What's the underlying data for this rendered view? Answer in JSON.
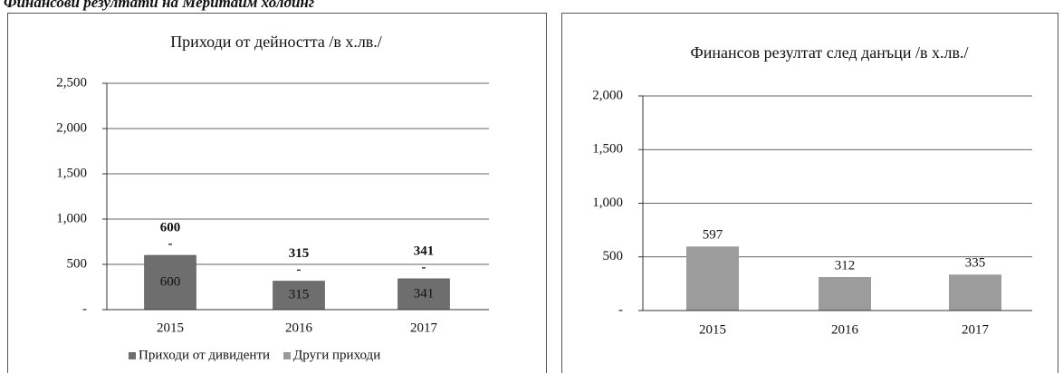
{
  "page_title": "Финансови резултати на Меритайм холдинг",
  "chart_data": [
    {
      "type": "stacked_bar",
      "title": "Приходи от дейността /в х.лв./",
      "categories": [
        "2015",
        "2016",
        "2017"
      ],
      "series": [
        {
          "name": "Приходи от дивиденти",
          "color": "#6e6e6e",
          "values": [
            600,
            315,
            341
          ]
        },
        {
          "name": "Други приходи",
          "color": "#9a9a9a",
          "values": [
            0,
            0,
            0
          ],
          "value_labels": [
            "-",
            "-",
            "-"
          ]
        }
      ],
      "totals": [
        600,
        315,
        341
      ],
      "ylim": [
        0,
        2500
      ],
      "yticks": [
        {
          "value": 0,
          "label": "-"
        },
        500,
        {
          "value": 1000,
          "label": "1,000"
        },
        {
          "value": 1500,
          "label": "1,500"
        },
        {
          "value": 2000,
          "label": "2,000"
        },
        {
          "value": 2500,
          "label": "2,500"
        }
      ],
      "grid": true,
      "legend": "bottom"
    },
    {
      "type": "bar",
      "title": "Финансов резултат след данъци /в х.лв./",
      "categories": [
        "2015",
        "2016",
        "2017"
      ],
      "values": [
        597,
        312,
        335
      ],
      "color": "#9c9c9c",
      "ylim": [
        0,
        2000
      ],
      "yticks": [
        {
          "value": 0,
          "label": "-"
        },
        500,
        {
          "value": 1000,
          "label": "1,000"
        },
        {
          "value": 1500,
          "label": "1,500"
        },
        {
          "value": 2000,
          "label": "2,000"
        }
      ],
      "grid": true
    }
  ]
}
